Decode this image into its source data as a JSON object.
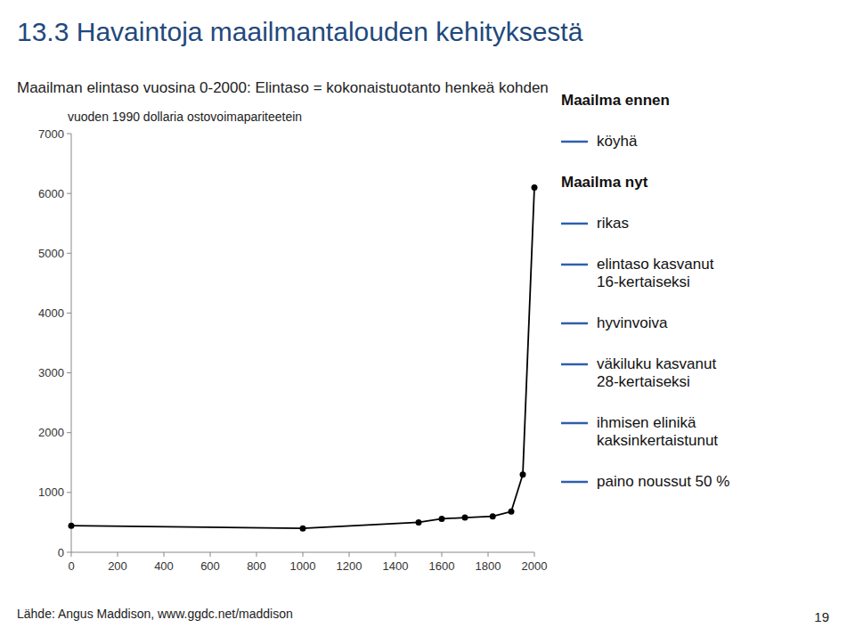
{
  "chart_data": {
    "type": "line",
    "title": "13.3 Havaintoja maailmantalouden kehityksestä",
    "subtitle": "Maailman elintaso vuosina 0-2000: Elintaso = kokonaistuotanto henkeä kohden",
    "ylabel": "vuoden 1990 dollaria ostovoimapariteetein",
    "source": "Lähde: Angus Maddison, www.ggdc.net/maddison",
    "page_number": "19",
    "x": [
      0,
      1000,
      1500,
      1600,
      1700,
      1820,
      1900,
      1950,
      2000
    ],
    "values": [
      444,
      400,
      500,
      560,
      580,
      600,
      680,
      1300,
      6100
    ],
    "color": "#000000",
    "marker": "circle",
    "xlim": [
      0,
      2000
    ],
    "ylim": [
      0,
      7000
    ],
    "xticks": [
      0,
      200,
      400,
      600,
      800,
      1000,
      1200,
      1400,
      1600,
      1800,
      2000
    ],
    "yticks": [
      0,
      1000,
      2000,
      3000,
      4000,
      5000,
      6000,
      7000
    ],
    "grid": false,
    "annotations": [
      {
        "heading": "Maailma ennen",
        "items": [
          "köyhä"
        ]
      },
      {
        "heading": "Maailma nyt",
        "items": [
          "rikas",
          "elintaso kasvanut\n16-kertaiseksi",
          "hyvinvoiva",
          "väkiluku kasvanut\n28-kertaiseksi",
          "ihmisen elinikä\nkaksinkertaistunut",
          "paino noussut 50 %"
        ]
      }
    ]
  }
}
